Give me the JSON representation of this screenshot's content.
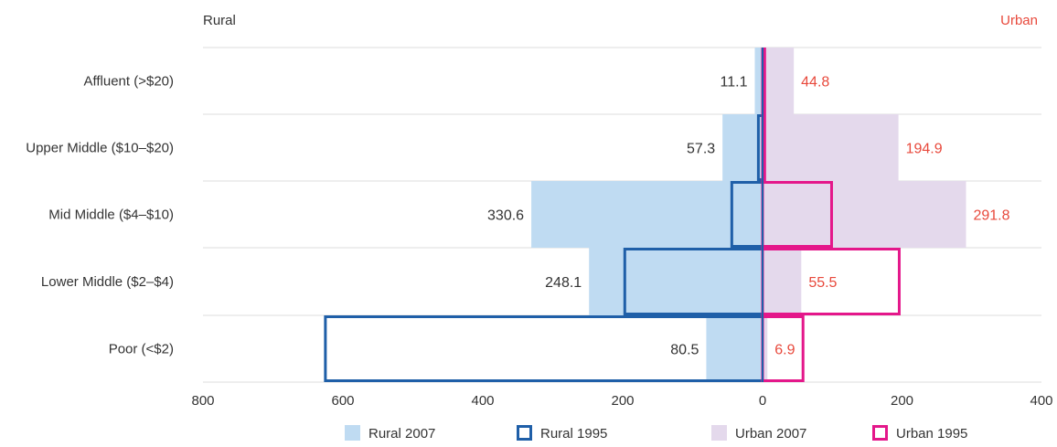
{
  "chart_data": {
    "type": "bar",
    "orientation": "horizontal-diverging",
    "left_label": "Rural",
    "right_label": "Urban",
    "categories": [
      "Affluent (>$20)",
      "Upper Middle ($10–$20)",
      "Mid Middle ($4–$10)",
      "Lower Middle ($2–$4)",
      "Poor (<$2)"
    ],
    "series": [
      {
        "name": "Rural 2007",
        "side": "left",
        "style": "filled",
        "color": "#bfdbf2",
        "values": [
          11.1,
          57.3,
          330.6,
          248.1,
          80.5
        ]
      },
      {
        "name": "Rural 1995",
        "side": "left",
        "style": "outline",
        "color": "#1f5fa8",
        "values": [
          0,
          6,
          44,
          197,
          625
        ]
      },
      {
        "name": "Urban 2007",
        "side": "right",
        "style": "filled",
        "color": "#e4d9ec",
        "values": [
          44.8,
          194.9,
          291.8,
          55.5,
          6.9
        ]
      },
      {
        "name": "Urban 1995",
        "side": "right",
        "style": "outline",
        "color": "#e4178a",
        "values": [
          3,
          3,
          99,
          196,
          58
        ]
      }
    ],
    "data_labels": {
      "left": [
        "11.1",
        "57.3",
        "330.6",
        "248.1",
        "80.5"
      ],
      "right": [
        "44.8",
        "194.9",
        "291.8",
        "55.5",
        "6.9"
      ]
    },
    "x_ticks_left": [
      "800",
      "600",
      "400",
      "200",
      "0"
    ],
    "x_ticks_right": [
      "200",
      "400"
    ],
    "xlim_left": [
      0,
      800
    ],
    "xlim_right": [
      0,
      400
    ],
    "grid": "horizontal",
    "legend_position": "bottom",
    "label_colors": {
      "rural": "#333333",
      "urban": "#e8493c"
    }
  }
}
